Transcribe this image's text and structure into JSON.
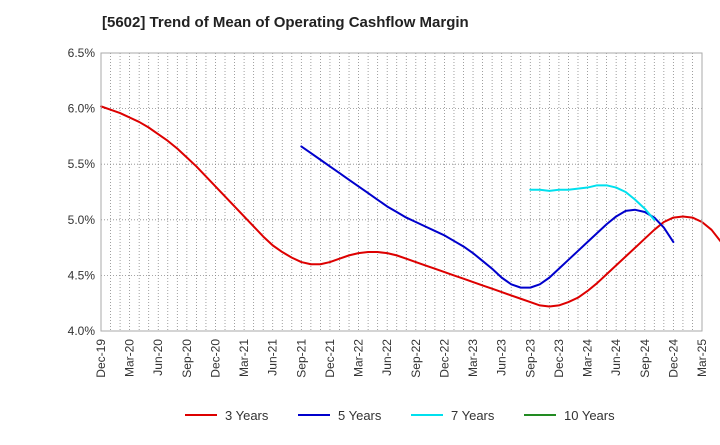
{
  "chart_data": {
    "type": "line",
    "title": "[5602]  Trend of Mean of Operating Cashflow Margin",
    "xlabel": "",
    "ylabel": "",
    "ylim": [
      4.0,
      6.5
    ],
    "yticks": [
      4.0,
      4.5,
      5.0,
      5.5,
      6.0,
      6.5
    ],
    "ytick_labels": [
      "4.0%",
      "4.5%",
      "5.0%",
      "5.5%",
      "6.0%",
      "6.5%"
    ],
    "categories": [
      "Dec-19",
      "Mar-20",
      "Jun-20",
      "Sep-20",
      "Dec-20",
      "Mar-21",
      "Jun-21",
      "Sep-21",
      "Dec-21",
      "Mar-22",
      "Jun-22",
      "Sep-22",
      "Dec-22",
      "Mar-23",
      "Jun-23",
      "Sep-23",
      "Dec-23",
      "Mar-24",
      "Jun-24",
      "Sep-24",
      "Dec-24",
      "Mar-25"
    ],
    "x_range": [
      "Dec-19",
      "Mar-25"
    ],
    "months_per_category": 3,
    "grid": true,
    "legend_position": "bottom",
    "series": [
      {
        "name": "3 Years",
        "color": "#dd0000",
        "points": [
          [
            "Dec-19",
            6.02
          ],
          [
            "Jan-20",
            5.99
          ],
          [
            "Feb-20",
            5.96
          ],
          [
            "Mar-20",
            5.92
          ],
          [
            "Apr-20",
            5.88
          ],
          [
            "May-20",
            5.83
          ],
          [
            "Jun-20",
            5.77
          ],
          [
            "Jul-20",
            5.71
          ],
          [
            "Aug-20",
            5.64
          ],
          [
            "Sep-20",
            5.56
          ],
          [
            "Oct-20",
            5.48
          ],
          [
            "Nov-20",
            5.39
          ],
          [
            "Dec-20",
            5.3
          ],
          [
            "Jan-21",
            5.21
          ],
          [
            "Feb-21",
            5.12
          ],
          [
            "Mar-21",
            5.03
          ],
          [
            "Apr-21",
            4.94
          ],
          [
            "May-21",
            4.85
          ],
          [
            "Jun-21",
            4.77
          ],
          [
            "Jul-21",
            4.71
          ],
          [
            "Aug-21",
            4.66
          ],
          [
            "Sep-21",
            4.62
          ],
          [
            "Oct-21",
            4.6
          ],
          [
            "Nov-21",
            4.6
          ],
          [
            "Dec-21",
            4.62
          ],
          [
            "Jan-22",
            4.65
          ],
          [
            "Feb-22",
            4.68
          ],
          [
            "Mar-22",
            4.7
          ],
          [
            "Apr-22",
            4.71
          ],
          [
            "May-22",
            4.71
          ],
          [
            "Jun-22",
            4.7
          ],
          [
            "Jul-22",
            4.68
          ],
          [
            "Aug-22",
            4.65
          ],
          [
            "Sep-22",
            4.62
          ],
          [
            "Oct-22",
            4.59
          ],
          [
            "Nov-22",
            4.56
          ],
          [
            "Dec-22",
            4.53
          ],
          [
            "Jan-23",
            4.5
          ],
          [
            "Feb-23",
            4.47
          ],
          [
            "Mar-23",
            4.44
          ],
          [
            "Apr-23",
            4.41
          ],
          [
            "May-23",
            4.38
          ],
          [
            "Jun-23",
            4.35
          ],
          [
            "Jul-23",
            4.32
          ],
          [
            "Aug-23",
            4.29
          ],
          [
            "Sep-23",
            4.26
          ],
          [
            "Oct-23",
            4.23
          ],
          [
            "Nov-23",
            4.22
          ],
          [
            "Dec-23",
            4.23
          ],
          [
            "Jan-24",
            4.26
          ],
          [
            "Feb-24",
            4.3
          ],
          [
            "Mar-24",
            4.36
          ],
          [
            "Apr-24",
            4.43
          ],
          [
            "May-24",
            4.51
          ],
          [
            "Jun-24",
            4.59
          ],
          [
            "Jul-24",
            4.67
          ],
          [
            "Aug-24",
            4.75
          ],
          [
            "Sep-24",
            4.83
          ],
          [
            "Oct-24",
            4.91
          ],
          [
            "Nov-24",
            4.98
          ],
          [
            "Dec-24",
            5.02
          ],
          [
            "Jan-25",
            5.03
          ],
          [
            "Feb-25",
            5.02
          ],
          [
            "Mar-25",
            4.98
          ],
          [
            "Apr-25",
            4.91
          ],
          [
            "May-25",
            4.8
          ]
        ]
      },
      {
        "name": "5 Years",
        "color": "#0000cc",
        "points": [
          [
            "Sep-21",
            5.66
          ],
          [
            "Oct-21",
            5.6
          ],
          [
            "Nov-21",
            5.54
          ],
          [
            "Dec-21",
            5.48
          ],
          [
            "Jan-22",
            5.42
          ],
          [
            "Feb-22",
            5.36
          ],
          [
            "Mar-22",
            5.3
          ],
          [
            "Apr-22",
            5.24
          ],
          [
            "May-22",
            5.18
          ],
          [
            "Jun-22",
            5.12
          ],
          [
            "Jul-22",
            5.07
          ],
          [
            "Aug-22",
            5.02
          ],
          [
            "Sep-22",
            4.98
          ],
          [
            "Oct-22",
            4.94
          ],
          [
            "Nov-22",
            4.9
          ],
          [
            "Dec-22",
            4.86
          ],
          [
            "Jan-23",
            4.81
          ],
          [
            "Feb-23",
            4.76
          ],
          [
            "Mar-23",
            4.7
          ],
          [
            "Apr-23",
            4.63
          ],
          [
            "May-23",
            4.56
          ],
          [
            "Jun-23",
            4.48
          ],
          [
            "Jul-23",
            4.42
          ],
          [
            "Aug-23",
            4.39
          ],
          [
            "Sep-23",
            4.39
          ],
          [
            "Oct-23",
            4.42
          ],
          [
            "Nov-23",
            4.48
          ],
          [
            "Dec-23",
            4.56
          ],
          [
            "Jan-24",
            4.64
          ],
          [
            "Feb-24",
            4.72
          ],
          [
            "Mar-24",
            4.8
          ],
          [
            "Apr-24",
            4.88
          ],
          [
            "May-24",
            4.96
          ],
          [
            "Jun-24",
            5.03
          ],
          [
            "Jul-24",
            5.08
          ],
          [
            "Aug-24",
            5.09
          ],
          [
            "Sep-24",
            5.07
          ],
          [
            "Oct-24",
            5.02
          ],
          [
            "Nov-24",
            4.93
          ],
          [
            "Dec-24",
            4.8
          ]
        ]
      },
      {
        "name": "7 Years",
        "color": "#00e0ee",
        "points": [
          [
            "Sep-23",
            5.27
          ],
          [
            "Oct-23",
            5.27
          ],
          [
            "Nov-23",
            5.26
          ],
          [
            "Dec-23",
            5.27
          ],
          [
            "Jan-24",
            5.27
          ],
          [
            "Feb-24",
            5.28
          ],
          [
            "Mar-24",
            5.29
          ],
          [
            "Apr-24",
            5.31
          ],
          [
            "May-24",
            5.31
          ],
          [
            "Jun-24",
            5.29
          ],
          [
            "Jul-24",
            5.25
          ],
          [
            "Aug-24",
            5.18
          ],
          [
            "Sep-24",
            5.1
          ],
          [
            "Oct-24",
            5.0
          ]
        ]
      },
      {
        "name": "10 Years",
        "color": "#228b22",
        "points": []
      }
    ]
  }
}
